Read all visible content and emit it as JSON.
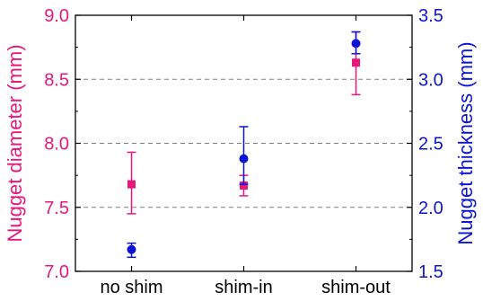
{
  "chart_data": {
    "type": "scatter",
    "title": "",
    "categories": [
      "no shim",
      "shim-in",
      "shim-out"
    ],
    "y_left": {
      "label": "Nugget diameter (mm)",
      "range": [
        7.0,
        9.0
      ],
      "ticks": [
        "7.0",
        "7.5",
        "8.0",
        "8.5",
        "9.0"
      ],
      "color": "#e8177e"
    },
    "y_right": {
      "label": "Nugget thickness (mm)",
      "range": [
        1.5,
        3.5
      ],
      "ticks": [
        "1.5",
        "2.0",
        "2.5",
        "3.0",
        "3.5"
      ],
      "color": "#0b14d6"
    },
    "grid": "dashed horizontal at 7.5, 8.0, 8.5",
    "series": [
      {
        "axis": "left",
        "marker": "square",
        "color": "#e8177e",
        "values": [
          7.68,
          7.67,
          8.63
        ],
        "err_low": [
          7.45,
          7.59,
          8.38
        ],
        "err_high": [
          7.93,
          7.75,
          8.87
        ]
      },
      {
        "axis": "right",
        "marker": "circle",
        "color": "#0b14d6",
        "values": [
          1.67,
          2.38,
          3.28
        ],
        "err_low": [
          1.61,
          2.18,
          3.2
        ],
        "err_high": [
          1.72,
          2.63,
          3.37
        ]
      }
    ]
  }
}
